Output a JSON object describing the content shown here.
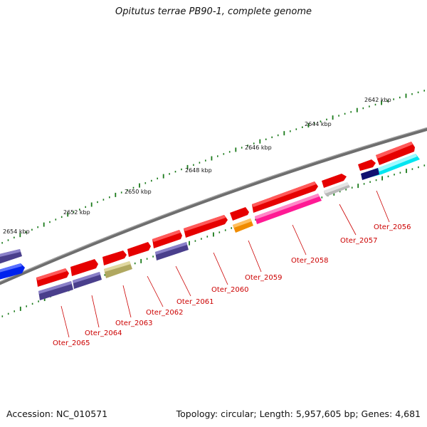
{
  "title": "Opitutus terrae PB90-1, complete genome",
  "footer": {
    "accession": "Accession: NC_010571",
    "summary": "Topology: circular; Length: 5,957,605 bp; Genes: 4,681"
  },
  "colors": {
    "backbone": "#7a7a7a",
    "ruler_ticks": "#1a7a1a",
    "label": "#cc0000",
    "cds": "#e60000",
    "blue_purple": "#4a3f8c",
    "olive": "#b0a860",
    "orange": "#f08c00",
    "magenta": "#ff2a9a",
    "gray": "#b8b8b8",
    "cyan": "#00e5f0",
    "navy": "#101070",
    "blue": "#0022ee"
  },
  "ruler": {
    "ticks": [
      {
        "label": "2642 kbp"
      },
      {
        "label": "2644 kbp"
      },
      {
        "label": "2646 kbp"
      },
      {
        "label": "2648 kbp"
      },
      {
        "label": "2650 kbp"
      },
      {
        "label": "2652 kbp"
      },
      {
        "label": "2654 kbp"
      }
    ]
  },
  "genes": [
    {
      "label": "Oter_2056"
    },
    {
      "label": "Oter_2057"
    },
    {
      "label": "Oter_2058"
    },
    {
      "label": "Oter_2059"
    },
    {
      "label": "Oter_2060"
    },
    {
      "label": "Oter_2061"
    },
    {
      "label": "Oter_2062"
    },
    {
      "label": "Oter_2063"
    },
    {
      "label": "Oter_2064"
    },
    {
      "label": "Oter_2065"
    }
  ]
}
